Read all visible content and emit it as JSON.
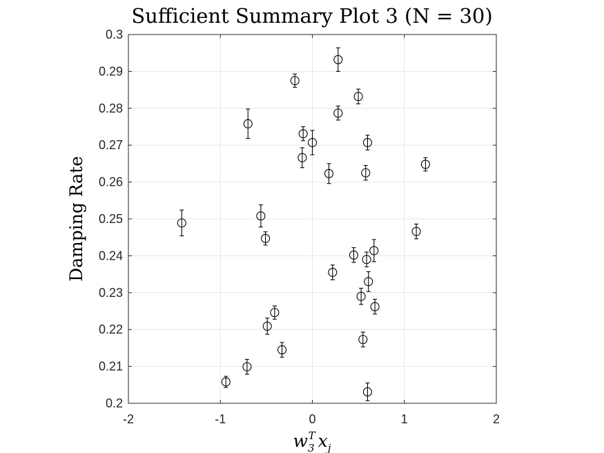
{
  "chart_data": {
    "type": "scatter",
    "title": "Sufficient Summary Plot 3 (N = 30)",
    "xlabel": "w_3^T x_j",
    "ylabel": "Damping Rate",
    "xlim": [
      -2,
      2
    ],
    "ylim": [
      0.2,
      0.3
    ],
    "xticks": [
      -2,
      -1,
      0,
      1,
      2
    ],
    "xtick_labels": [
      "-2",
      "-1",
      "0",
      "1",
      "2"
    ],
    "yticks": [
      0.2,
      0.21,
      0.22,
      0.23,
      0.24,
      0.25,
      0.26,
      0.27,
      0.28,
      0.29,
      0.3
    ],
    "ytick_labels": [
      "0.2",
      "0.21",
      "0.22",
      "0.23",
      "0.24",
      "0.25",
      "0.26",
      "0.27",
      "0.28",
      "0.29",
      "0.3"
    ],
    "grid": true,
    "marker": "open-circle",
    "points": [
      {
        "x": 0.28,
        "y": 0.2932,
        "err": 0.0032
      },
      {
        "x": -0.19,
        "y": 0.2875,
        "err": 0.0018
      },
      {
        "x": 0.5,
        "y": 0.2832,
        "err": 0.002
      },
      {
        "x": 0.28,
        "y": 0.2787,
        "err": 0.0019
      },
      {
        "x": -0.7,
        "y": 0.2758,
        "err": 0.004
      },
      {
        "x": -0.1,
        "y": 0.2731,
        "err": 0.0019
      },
      {
        "x": 0.0,
        "y": 0.2707,
        "err": 0.0033
      },
      {
        "x": 0.6,
        "y": 0.2707,
        "err": 0.002
      },
      {
        "x": -0.11,
        "y": 0.2666,
        "err": 0.0027
      },
      {
        "x": 1.23,
        "y": 0.2648,
        "err": 0.0018
      },
      {
        "x": 0.18,
        "y": 0.2623,
        "err": 0.0027
      },
      {
        "x": 0.58,
        "y": 0.2625,
        "err": 0.002
      },
      {
        "x": -1.42,
        "y": 0.2489,
        "err": 0.0035
      },
      {
        "x": -0.56,
        "y": 0.2508,
        "err": 0.003
      },
      {
        "x": -0.51,
        "y": 0.2447,
        "err": 0.0018
      },
      {
        "x": 1.13,
        "y": 0.2466,
        "err": 0.002
      },
      {
        "x": 0.67,
        "y": 0.2414,
        "err": 0.003
      },
      {
        "x": 0.45,
        "y": 0.2402,
        "err": 0.002
      },
      {
        "x": 0.59,
        "y": 0.239,
        "err": 0.002
      },
      {
        "x": 0.22,
        "y": 0.2355,
        "err": 0.002
      },
      {
        "x": 0.61,
        "y": 0.233,
        "err": 0.0027
      },
      {
        "x": 0.53,
        "y": 0.229,
        "err": 0.0022
      },
      {
        "x": 0.68,
        "y": 0.2262,
        "err": 0.002
      },
      {
        "x": -0.41,
        "y": 0.2246,
        "err": 0.0018
      },
      {
        "x": -0.49,
        "y": 0.2209,
        "err": 0.0022
      },
      {
        "x": 0.55,
        "y": 0.2173,
        "err": 0.002
      },
      {
        "x": -0.33,
        "y": 0.2145,
        "err": 0.002
      },
      {
        "x": -0.71,
        "y": 0.2099,
        "err": 0.002
      },
      {
        "x": -0.94,
        "y": 0.2058,
        "err": 0.0015
      },
      {
        "x": 0.6,
        "y": 0.2031,
        "err": 0.0024
      }
    ]
  }
}
